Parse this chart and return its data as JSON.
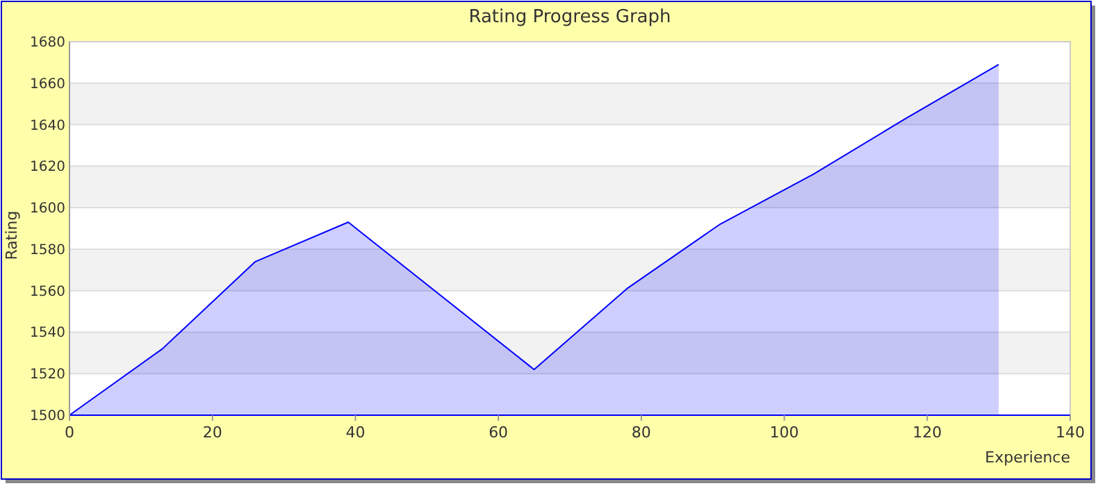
{
  "chart_data": {
    "type": "area",
    "title": "Rating Progress Graph",
    "xlabel": "Experience",
    "ylabel": "Rating",
    "x": [
      0,
      13,
      26,
      39,
      65,
      78,
      91,
      104,
      117,
      130
    ],
    "series": [
      {
        "color": "#0000ff",
        "values": [
          1500,
          1532,
          1574,
          1593,
          1522,
          1561,
          1592,
          1616,
          1643,
          1669
        ]
      }
    ],
    "xlim": [
      0,
      140
    ],
    "xticks": [
      0,
      20,
      40,
      60,
      80,
      100,
      120,
      140
    ],
    "ylim": [
      1500,
      1680
    ],
    "yticks": [
      1500,
      1520,
      1540,
      1560,
      1580,
      1600,
      1620,
      1640,
      1660,
      1680
    ],
    "grid": "y"
  }
}
